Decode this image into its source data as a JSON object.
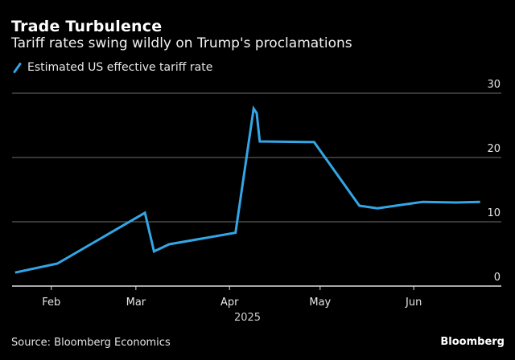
{
  "header": {
    "title": "Trade Turbulence",
    "subtitle": "Tariff rates swing wildly on Trump's proclamations"
  },
  "legend": {
    "label": "Estimated US effective tariff rate",
    "color": "#33a6e6"
  },
  "footer": {
    "source": "Source: Bloomberg Economics",
    "brand": "Bloomberg"
  },
  "chart_data": {
    "type": "line",
    "title": "Trade Turbulence",
    "subtitle": "Tariff rates swing wildly on Trump's proclamations",
    "xlabel": "2025",
    "ylabel": "",
    "ylim": [
      0,
      30
    ],
    "y_ticks": [
      0,
      10,
      20,
      30
    ],
    "y_axis_position": "right",
    "grid": true,
    "legend_position": "top-left",
    "x_ticks": [
      {
        "label": "Feb",
        "date": "2025-02-01"
      },
      {
        "label": "Mar",
        "date": "2025-03-01"
      },
      {
        "label": "Apr",
        "date": "2025-04-01"
      },
      {
        "label": "May",
        "date": "2025-05-01"
      },
      {
        "label": "Jun",
        "date": "2025-06-01"
      }
    ],
    "x_range": [
      "2025-01-19",
      "2025-06-30"
    ],
    "series": [
      {
        "name": "Estimated US effective tariff rate",
        "color": "#33a6e6",
        "points": [
          {
            "date": "2025-01-20",
            "value": 2.1
          },
          {
            "date": "2025-02-03",
            "value": 3.5
          },
          {
            "date": "2025-03-04",
            "value": 11.4
          },
          {
            "date": "2025-03-07",
            "value": 5.4
          },
          {
            "date": "2025-03-12",
            "value": 6.5
          },
          {
            "date": "2025-04-03",
            "value": 8.3
          },
          {
            "date": "2025-04-09",
            "value": 27.6
          },
          {
            "date": "2025-04-10",
            "value": 26.9
          },
          {
            "date": "2025-04-11",
            "value": 22.5
          },
          {
            "date": "2025-04-29",
            "value": 22.4
          },
          {
            "date": "2025-05-14",
            "value": 12.5
          },
          {
            "date": "2025-05-20",
            "value": 12.1
          },
          {
            "date": "2025-06-04",
            "value": 13.1
          },
          {
            "date": "2025-06-15",
            "value": 13.0
          },
          {
            "date": "2025-06-23",
            "value": 13.1
          }
        ]
      }
    ]
  }
}
